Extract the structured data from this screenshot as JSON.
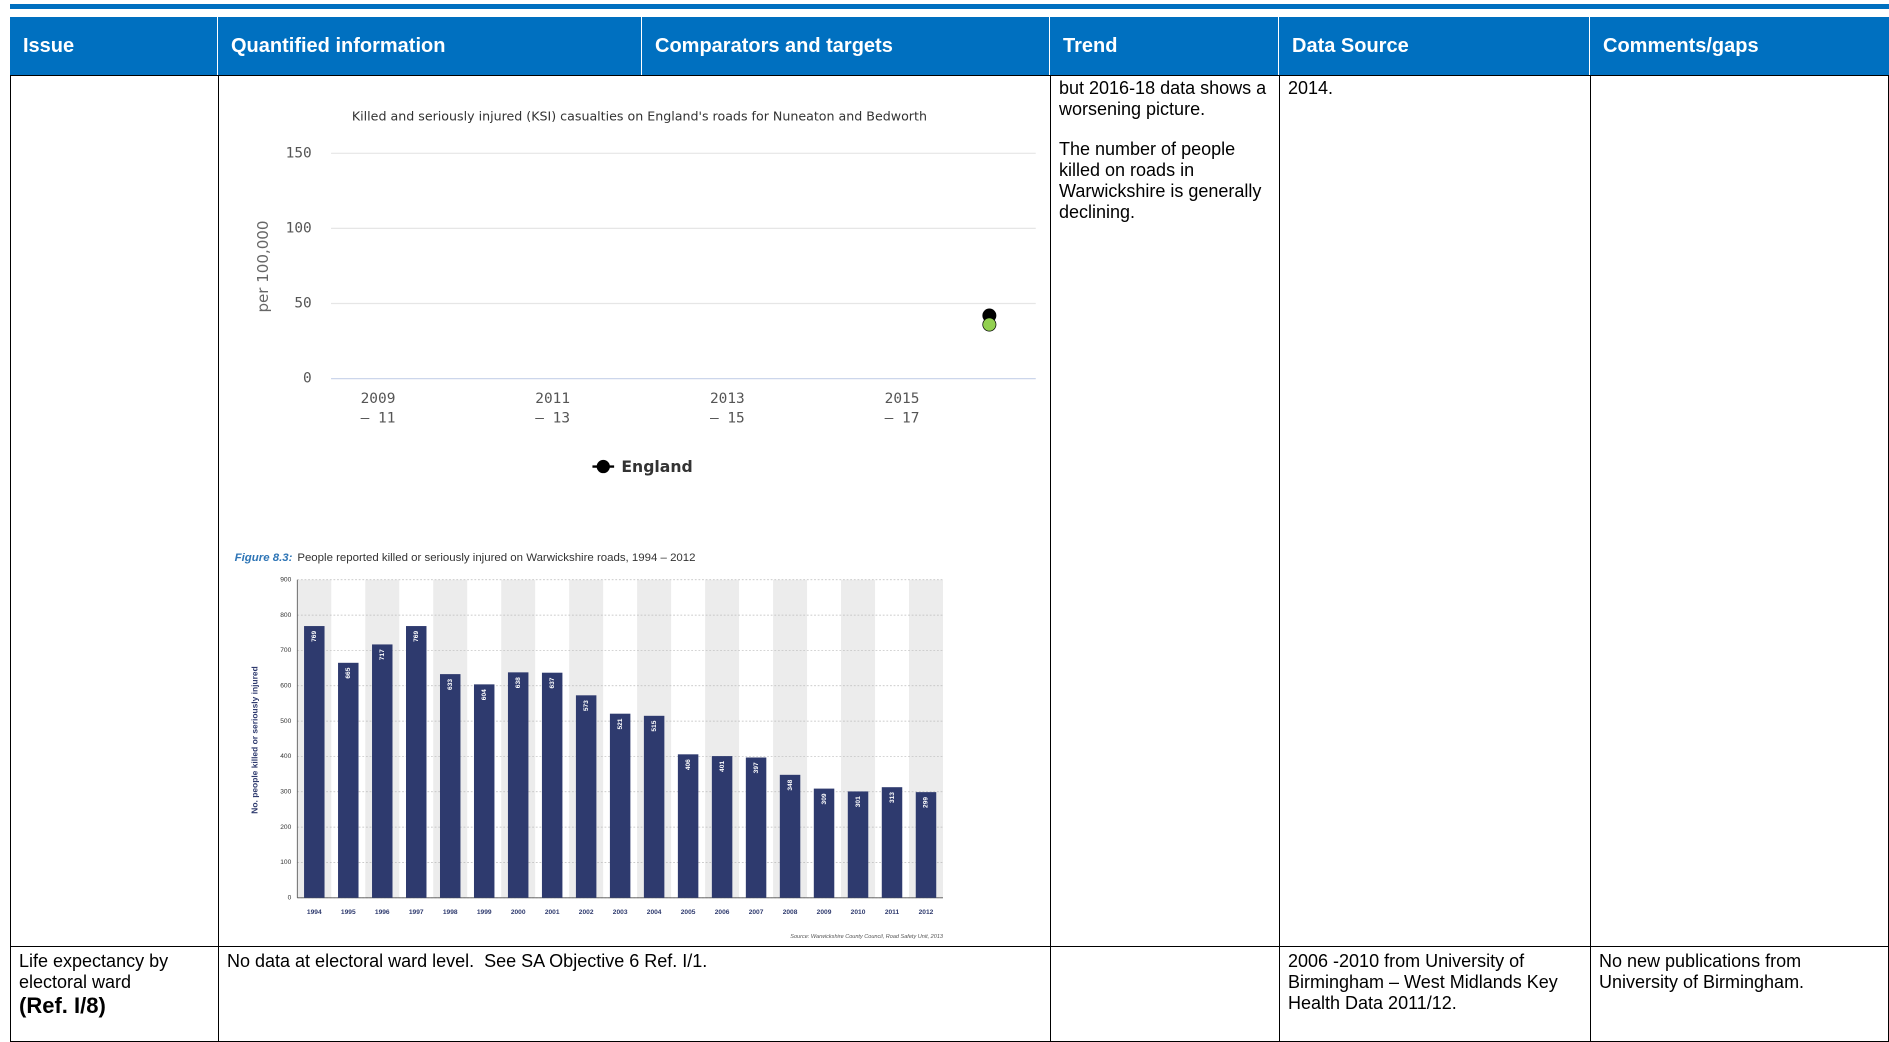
{
  "header": {
    "columns": [
      "Issue",
      "Quantified information",
      "Comparators and targets",
      "Trend",
      "Data Source",
      "Comments/gaps"
    ]
  },
  "table": {
    "rows": [
      {
        "trend": [
          "but 2016-18 data shows a worsening picture.",
          "The number of people killed on roads in Warwickshire is generally declining."
        ],
        "data_source": "2014."
      },
      {
        "issue": "Life expectancy by electoral ward",
        "issue_ref": "(Ref. I/8)",
        "quantified": "No data at electoral ward level.  See SA Objective 6 Ref. I/1.",
        "data_source": "2006 -2010 from University of Birmingham – West Midlands Key Health Data 2011/12.",
        "comments": "No new publications from University of Birmingham."
      }
    ]
  },
  "chart_data": [
    {
      "type": "dot",
      "title": "Killed and seriously injured (KSI) casualties on England's roads for Nuneaton and Bedworth",
      "y_label": "per 100,000",
      "categories": [
        "2009\n– 11",
        null,
        "2011\n– 13",
        null,
        "2013\n– 15",
        null,
        "2015\n– 17",
        null
      ],
      "series": [
        {
          "name": "England",
          "color": "#000000",
          "values": [
            null,
            null,
            null,
            null,
            null,
            null,
            null,
            42
          ]
        },
        {
          "color": "#92d050",
          "values": [
            null,
            null,
            null,
            null,
            null,
            null,
            null,
            36
          ]
        }
      ],
      "ylim": [
        0,
        150
      ],
      "yticks": [
        0,
        50,
        100,
        150
      ],
      "grid": true
    },
    {
      "type": "bar",
      "title_label": "Figure 8.3:",
      "title": "People reported killed or seriously injured on Warwickshire roads, 1994 – 2012",
      "y_label": "No. people killed or seriously injured",
      "source": "Source: Warwickshire County Council, Road Safety Unit, 2013",
      "categories": [
        "1994",
        "1995",
        "1996",
        "1997",
        "1998",
        "1999",
        "2000",
        "2001",
        "2002",
        "2003",
        "2004",
        "2005",
        "2006",
        "2007",
        "2008",
        "2009",
        "2010",
        "2011",
        "2012"
      ],
      "values": [
        769,
        665,
        717,
        769,
        633,
        604,
        638,
        637,
        573,
        521,
        515,
        406,
        401,
        397,
        348,
        309,
        301,
        313,
        299
      ],
      "color": "#2e3a6e",
      "ylim": [
        0,
        900
      ],
      "yticks": [
        0,
        100,
        200,
        300,
        400,
        500,
        600,
        700,
        800,
        900
      ],
      "grid": true
    }
  ]
}
